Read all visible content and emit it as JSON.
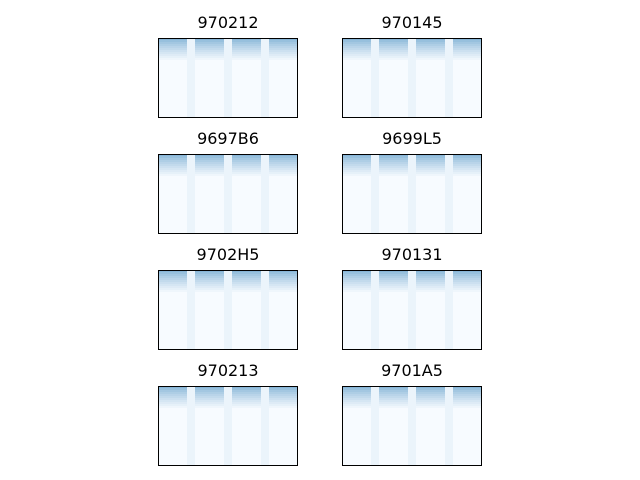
{
  "figure": {
    "colormap": "Blues",
    "border_color": "#000000",
    "background_color": "#ffffff"
  },
  "chart_data": [
    {
      "type": "heatmap",
      "title": "970212",
      "column_groups": 4,
      "color_top": "#4a90c2",
      "color_low": "#f7fbff",
      "axes": "hidden"
    },
    {
      "type": "heatmap",
      "title": "970145",
      "column_groups": 4,
      "color_top": "#4a90c2",
      "color_low": "#f7fbff",
      "axes": "hidden"
    },
    {
      "type": "heatmap",
      "title": "9697B6",
      "column_groups": 4,
      "color_top": "#4a90c2",
      "color_low": "#f7fbff",
      "axes": "hidden"
    },
    {
      "type": "heatmap",
      "title": "9699L5",
      "column_groups": 4,
      "color_top": "#4a90c2",
      "color_low": "#f7fbff",
      "axes": "hidden"
    },
    {
      "type": "heatmap",
      "title": "9702H5",
      "column_groups": 4,
      "color_top": "#4a90c2",
      "color_low": "#f7fbff",
      "axes": "hidden"
    },
    {
      "type": "heatmap",
      "title": "970131",
      "column_groups": 4,
      "color_top": "#4a90c2",
      "color_low": "#f7fbff",
      "axes": "hidden"
    },
    {
      "type": "heatmap",
      "title": "970213",
      "column_groups": 4,
      "color_top": "#4a90c2",
      "color_low": "#f7fbff",
      "axes": "hidden"
    },
    {
      "type": "heatmap",
      "title": "9701A5",
      "column_groups": 4,
      "color_top": "#4a90c2",
      "color_low": "#f7fbff",
      "axes": "hidden"
    }
  ]
}
